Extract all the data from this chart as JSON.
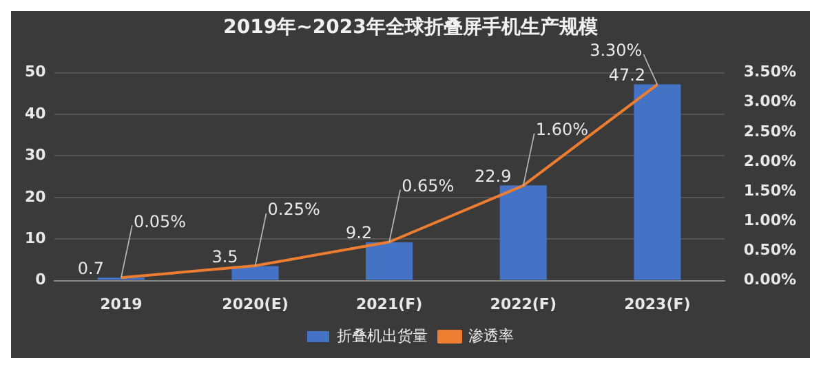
{
  "chart_data": {
    "type": "bar",
    "title": "2019年~2023年全球折叠屏手机生产规模",
    "categories": [
      "2019",
      "2020(E)",
      "2021(F)",
      "2022(F)",
      "2023(F)"
    ],
    "series": [
      {
        "name": "折叠机出货量",
        "color": "#4472c4",
        "values": [
          0.7,
          3.5,
          9.2,
          22.9,
          47.2
        ],
        "value_labels": [
          "0.7",
          "3.5",
          "9.2",
          "22.9",
          "47.2"
        ]
      },
      {
        "name": "渗透率",
        "type": "line",
        "axis": "y2",
        "color": "#ed7d31",
        "values": [
          0.05,
          0.25,
          0.65,
          1.6,
          3.3
        ],
        "value_labels": [
          "0.05%",
          "0.25%",
          "0.65%",
          "1.60%",
          "3.30%"
        ]
      }
    ],
    "ylim": [
      0,
      50
    ],
    "yticks": [
      0,
      10,
      20,
      30,
      40,
      50
    ],
    "y2lim": [
      0,
      3.5
    ],
    "y2ticks": [
      {
        "value": 0,
        "label": "0.00%"
      },
      {
        "value": 0.5,
        "label": "0.50%"
      },
      {
        "value": 1,
        "label": "1.00%"
      },
      {
        "value": 1.5,
        "label": "1.50%"
      },
      {
        "value": 2,
        "label": "2.00%"
      },
      {
        "value": 2.5,
        "label": "2.50%"
      },
      {
        "value": 3,
        "label": "3.00%"
      },
      {
        "value": 3.5,
        "label": "3.50%"
      }
    ],
    "grid": "y",
    "legend": "bottom",
    "marker": "none",
    "line_style": "solid"
  }
}
